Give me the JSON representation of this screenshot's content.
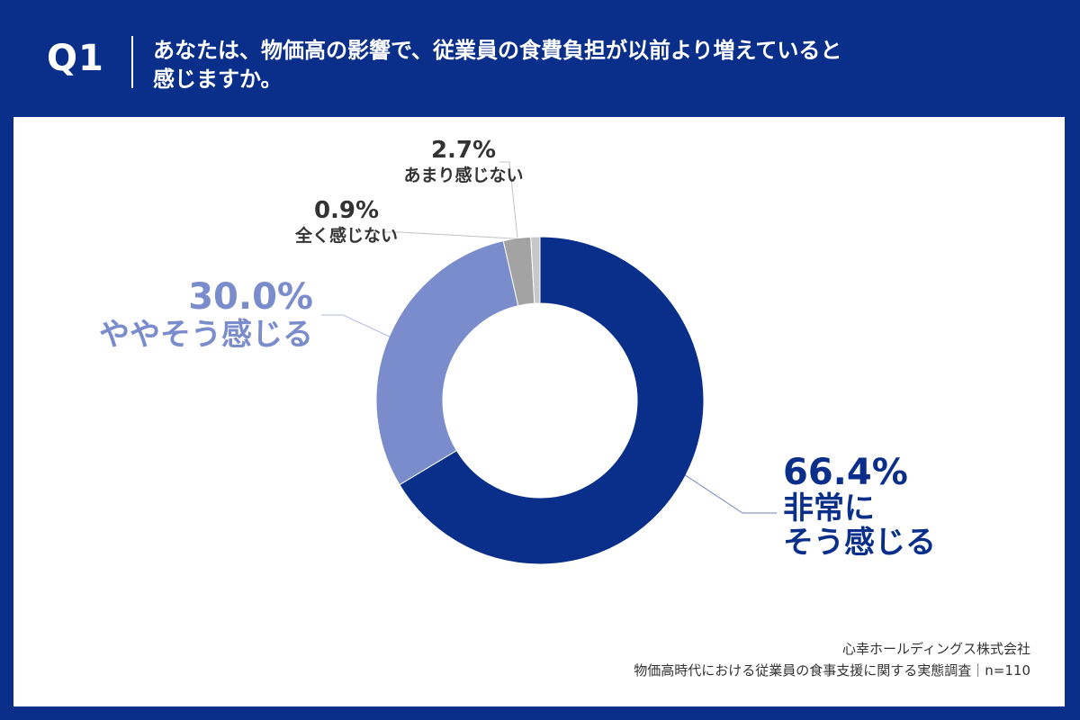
{
  "header": {
    "question_number": "Q1",
    "question_line1": "あなたは、物価高の影響で、従業員の食費負担が以前より増えていると",
    "question_line2": "感じますか。"
  },
  "footer": {
    "company": "心幸ホールディングス株式会社",
    "survey": "物価高時代における従業員の食事支援に関する実態調査｜n=110"
  },
  "colors": {
    "background": "#0a2f8a",
    "strong": "#0a2f8a",
    "somewhat": "#7a8ccb",
    "not_much": "#a3a3a3",
    "not_at_all": "#c8c8c8"
  },
  "chart_data": {
    "type": "pie",
    "donut": true,
    "slices": [
      {
        "label": "非常にそう感じる",
        "label_lines": [
          "非常に",
          "そう感じる"
        ],
        "value": 66.4,
        "value_label": "66.4%",
        "color": "#0a2f8a"
      },
      {
        "label": "ややそう感じる",
        "label_lines": [
          "ややそう感じる"
        ],
        "value": 30.0,
        "value_label": "30.0%",
        "color": "#7a8ccb"
      },
      {
        "label": "あまり感じない",
        "label_lines": [
          "あまり感じない"
        ],
        "value": 2.7,
        "value_label": "2.7%",
        "color": "#a3a3a3"
      },
      {
        "label": "全く感じない",
        "label_lines": [
          "全く感じない"
        ],
        "value": 0.9,
        "value_label": "0.9%",
        "color": "#c8c8c8"
      }
    ]
  }
}
